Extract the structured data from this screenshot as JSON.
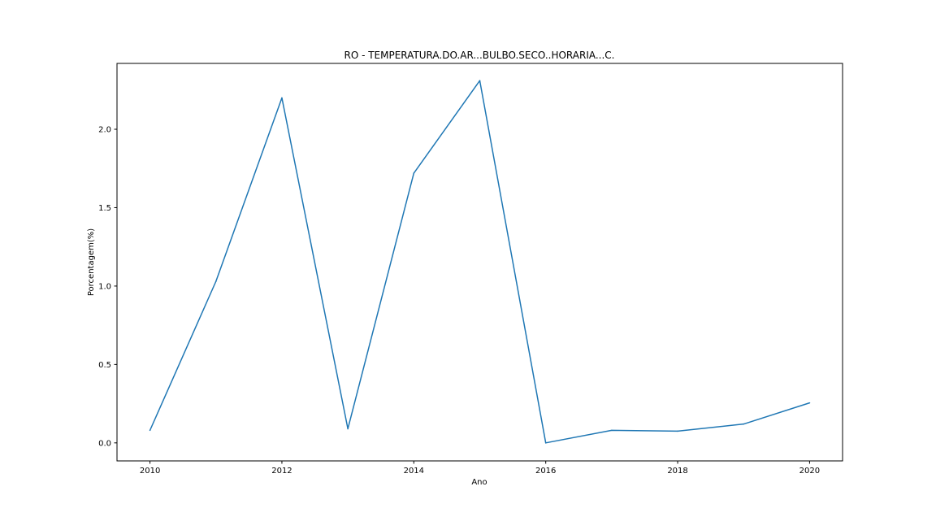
{
  "chart_data": {
    "type": "line",
    "title": "RO - TEMPERATURA.DO.AR...BULBO.SECO..HORARIA...C.",
    "xlabel": "Ano",
    "ylabel": "Porcentagem(%)",
    "x": [
      2010,
      2011,
      2012,
      2013,
      2014,
      2015,
      2016,
      2017,
      2018,
      2019,
      2020
    ],
    "series": [
      {
        "values": [
          0.08,
          1.03,
          2.2,
          0.09,
          1.72,
          2.31,
          0.0,
          0.08,
          0.075,
          0.12,
          0.255
        ],
        "color": "#1f77b4"
      }
    ],
    "xlim": [
      2009.5,
      2020.5
    ],
    "ylim": [
      -0.115,
      2.42
    ],
    "xticks": [
      2010,
      2012,
      2014,
      2016,
      2018,
      2020
    ],
    "xtick_labels": [
      "2010",
      "2012",
      "2014",
      "2016",
      "2018",
      "2020"
    ],
    "yticks": [
      0.0,
      0.5,
      1.0,
      1.5,
      2.0
    ],
    "ytick_labels": [
      "0.0",
      "0.5",
      "1.0",
      "1.5",
      "2.0"
    ],
    "grid": false,
    "legend": "none"
  }
}
